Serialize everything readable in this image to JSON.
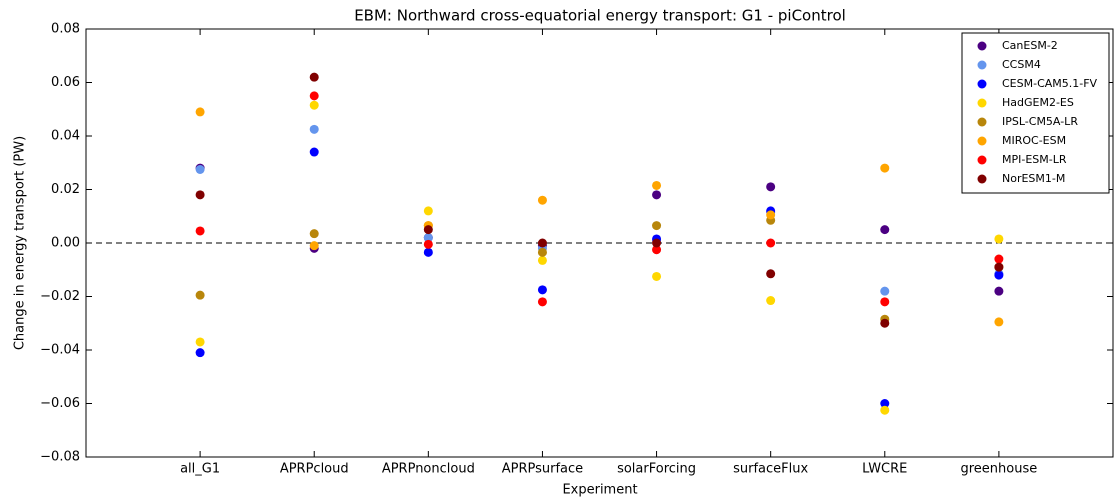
{
  "chart_data": {
    "type": "scatter",
    "title": "EBM: Northward cross-equatorial energy transport: G1 - piControl",
    "x_label": "Experiment",
    "y_label": "Change in energy transport (PW)",
    "categories": [
      "all_G1",
      "APRPcloud",
      "APRPnoncloud",
      "APRPsurface",
      "solarForcing",
      "surfaceFlux",
      "LWCRE",
      "greenhouse"
    ],
    "ylim": [
      -0.08,
      0.08
    ],
    "yticks": [
      {
        "value": -0.08,
        "label": "−0.08"
      },
      {
        "value": -0.06,
        "label": "−0.06"
      },
      {
        "value": -0.04,
        "label": "−0.04"
      },
      {
        "value": -0.02,
        "label": "−0.02"
      },
      {
        "value": 0,
        "label": "0.00"
      },
      0.02,
      0.04,
      0.06,
      0.08
    ],
    "hline": 0,
    "legend": "upper right",
    "series": [
      {
        "name": "CanESM-2",
        "color": "#4b0082",
        "values": [
          0.028,
          -0.002,
          0.002,
          -0.001,
          0.018,
          0.021,
          0.005,
          -0.018
        ]
      },
      {
        "name": "CCSM4",
        "color": "#6495ed",
        "values": [
          0.0275,
          0.0425,
          0.002,
          -0.002,
          0.001,
          0.0115,
          -0.018,
          -0.0115
        ]
      },
      {
        "name": "CESM-CAM5.1-FV",
        "color": "#0000ff",
        "values": [
          -0.041,
          0.034,
          -0.0035,
          -0.0175,
          0.0015,
          0.012,
          -0.06,
          -0.012
        ]
      },
      {
        "name": "HadGEM2-ES",
        "color": "#ffd700",
        "values": [
          -0.037,
          0.0515,
          0.012,
          -0.0065,
          -0.0125,
          -0.0215,
          -0.0625,
          0.0015
        ]
      },
      {
        "name": "IPSL-CM5A-LR",
        "color": "#b8860b",
        "values": [
          -0.0195,
          0.0035,
          0.0065,
          -0.0035,
          0.0065,
          0.0085,
          -0.0285,
          -0.009
        ]
      },
      {
        "name": "MIROC-ESM",
        "color": "#ffa500",
        "values": [
          0.049,
          -0.001,
          0.0065,
          0.016,
          0.0215,
          0.0105,
          0.028,
          -0.0295
        ]
      },
      {
        "name": "MPI-ESM-LR",
        "color": "#ff0000",
        "values": [
          0.0045,
          0.055,
          -0.0005,
          -0.022,
          -0.0025,
          0.0,
          -0.022,
          -0.006
        ]
      },
      {
        "name": "NorESM1-M",
        "color": "#800000",
        "values": [
          0.018,
          0.062,
          0.005,
          0.0,
          0.0,
          -0.0115,
          -0.03,
          -0.009
        ]
      }
    ]
  }
}
